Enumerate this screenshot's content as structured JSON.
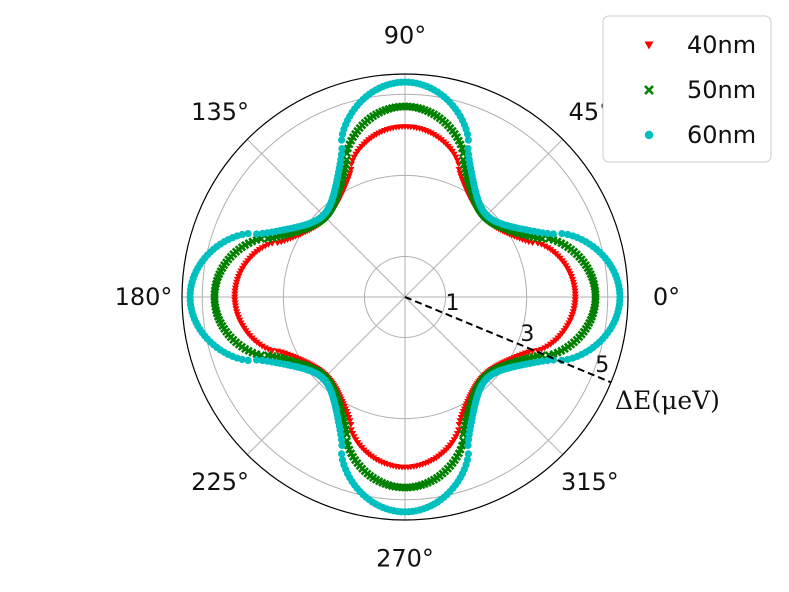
{
  "chart_data": {
    "type": "polar-scatter",
    "radial_axis": {
      "label": "ΔE(μeV)",
      "ticks": [
        1,
        3,
        5
      ],
      "rmax": 5.5,
      "grid": true
    },
    "angular_axis": {
      "tick_labels": [
        "0°",
        "45°",
        "90°",
        "135°",
        "180°",
        "225°",
        "270°",
        "315°"
      ],
      "grid": true
    },
    "legend": {
      "placement": "top-right",
      "entries": [
        "40nm",
        "50nm",
        "60nm"
      ]
    },
    "series": [
      {
        "name": "40nm",
        "marker": "triangle-down",
        "color": "#ff0000",
        "angles_deg": [
          0,
          45,
          90,
          135,
          180,
          225,
          270,
          315
        ],
        "r": [
          4.2,
          2.75,
          4.2,
          2.75,
          4.2,
          2.75,
          4.2,
          2.75
        ]
      },
      {
        "name": "50nm",
        "marker": "x",
        "color": "#008000",
        "angles_deg": [
          0,
          45,
          90,
          135,
          180,
          225,
          270,
          315
        ],
        "r": [
          4.7,
          2.8,
          4.7,
          2.8,
          4.7,
          2.8,
          4.7,
          2.8
        ]
      },
      {
        "name": "60nm",
        "marker": "circle",
        "color": "#00bfbf",
        "angles_deg": [
          0,
          45,
          90,
          135,
          180,
          225,
          270,
          315
        ],
        "r": [
          5.3,
          2.85,
          5.3,
          2.85,
          5.3,
          2.85,
          5.3,
          2.85
        ]
      }
    ],
    "annotations": [
      {
        "type": "dashed-line",
        "from_r": 0,
        "to_r": 5.5,
        "angle_deg": -22.5
      }
    ]
  }
}
